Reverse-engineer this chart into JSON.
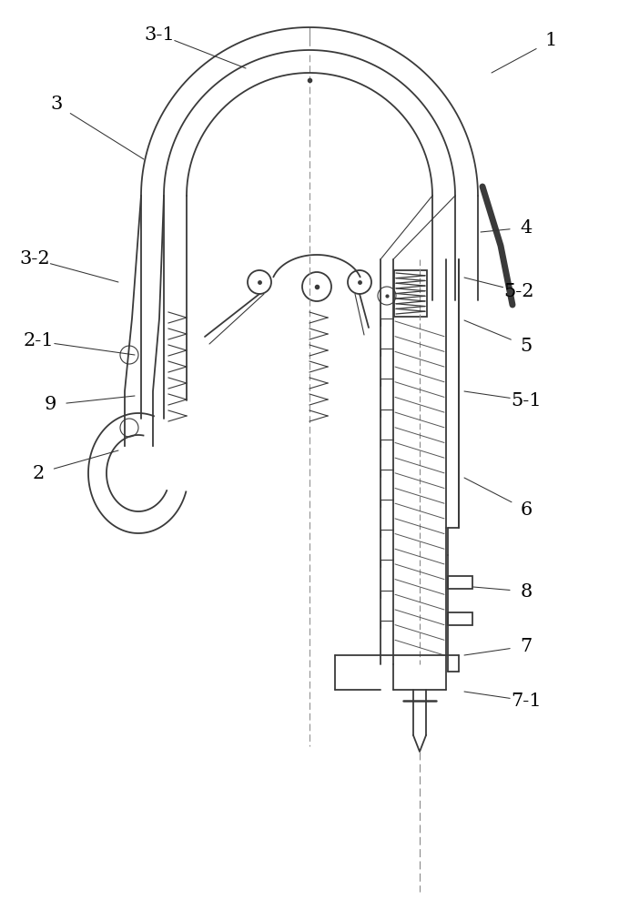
{
  "bg_color": "#ffffff",
  "line_color": "#3a3a3a",
  "lw": 1.3,
  "tlw": 0.8
}
